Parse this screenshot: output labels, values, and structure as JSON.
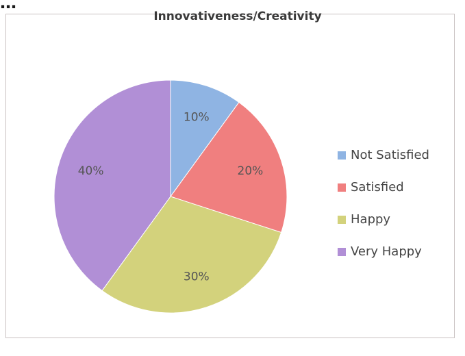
{
  "page": {
    "top_fragment": "…"
  },
  "chart_data": {
    "type": "pie",
    "title": "Innovativeness/Creativity",
    "categories": [
      "Not Satisfied",
      "Satisfied",
      "Happy",
      "Very Happy"
    ],
    "values": [
      10,
      20,
      30,
      40
    ],
    "data_labels": [
      "10%",
      "20%",
      "30%",
      "40%"
    ],
    "colors": [
      "#8fb4e3",
      "#f07f7f",
      "#d3d27c",
      "#b18fd6"
    ],
    "start_angle_deg": 0,
    "direction": "clockwise",
    "legend": "right"
  }
}
